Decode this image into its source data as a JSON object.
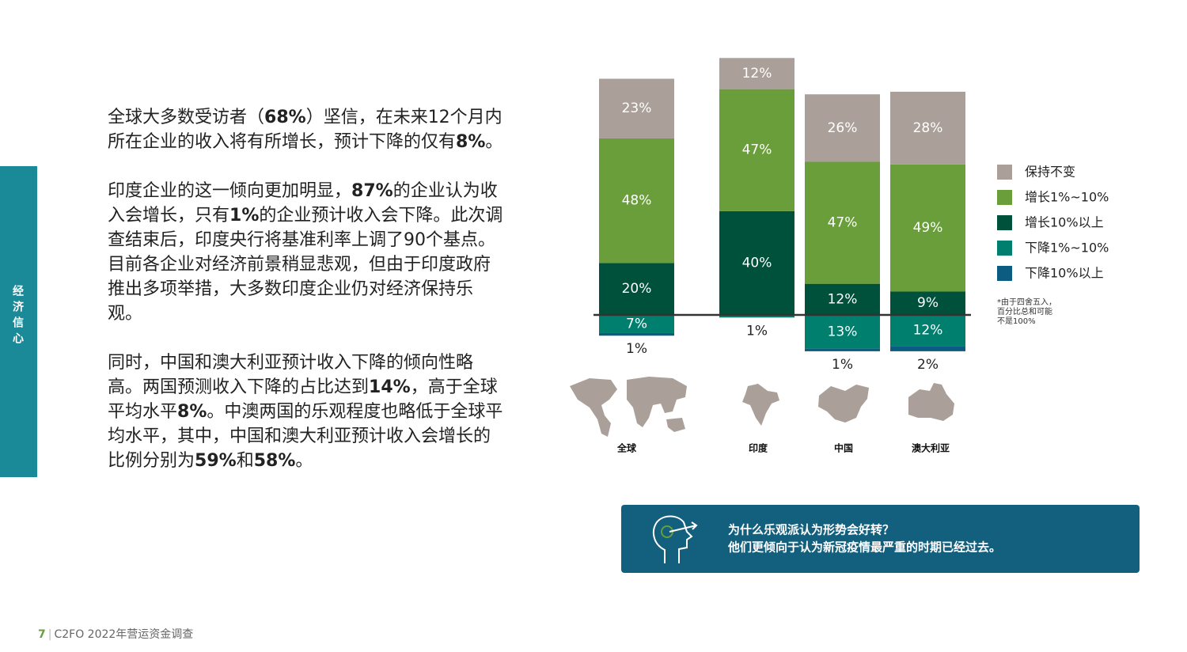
{
  "sidebar": {
    "label": "经济信心"
  },
  "paragraphs": [
    {
      "runs": [
        {
          "text": "全球大多数受访者（",
          "bold": false
        },
        {
          "text": "68%",
          "bold": true
        },
        {
          "text": "）坚信，在未来12个月内所在企业的收入将有所增长，预计下降的仅有",
          "bold": false
        },
        {
          "text": "8%",
          "bold": true
        },
        {
          "text": "。",
          "bold": false
        }
      ]
    },
    {
      "runs": [
        {
          "text": "印度企业的这一倾向更加明显，",
          "bold": false
        },
        {
          "text": "87%",
          "bold": true
        },
        {
          "text": "的企业认为收入会增长，只有",
          "bold": false
        },
        {
          "text": "1%",
          "bold": true
        },
        {
          "text": "的企业预计收入会下降。此次调查结束后，印度央行将基准利率上调了90个基点。目前各企业对经济前景稍显悲观，但由于印度政府推出多项举措，大多数印度企业仍对经济保持乐观。",
          "bold": false
        }
      ]
    },
    {
      "runs": [
        {
          "text": "同时，中国和澳大利亚预计收入下降的倾向性略高。两国预测收入下降的占比达到",
          "bold": false
        },
        {
          "text": "14%",
          "bold": true
        },
        {
          "text": "，高于全球平均水平",
          "bold": false
        },
        {
          "text": "8%",
          "bold": true
        },
        {
          "text": "。中澳两国的乐观程度也略低于全球平均水平，其中，中国和澳大利亚预计收入会增长的比例分别为",
          "bold": false
        },
        {
          "text": "59%",
          "bold": true
        },
        {
          "text": "和",
          "bold": false
        },
        {
          "text": "58%",
          "bold": true
        },
        {
          "text": "。",
          "bold": false
        }
      ]
    }
  ],
  "chart_data": {
    "type": "bar",
    "categories": [
      "全球",
      "印度",
      "中国",
      "澳大利亚"
    ],
    "series": [
      {
        "name": "保持不变",
        "color": "#aaa099",
        "stack": "up",
        "values": [
          23,
          12,
          26,
          28
        ],
        "value_labels": [
          "23%",
          "12%",
          "26%",
          "28%"
        ]
      },
      {
        "name": "增长1%~10%",
        "color": "#6a9e3b",
        "stack": "up",
        "values": [
          48,
          47,
          47,
          49
        ],
        "value_labels": [
          "48%",
          "47%",
          "47%",
          "49%"
        ]
      },
      {
        "name": "增长10%以上",
        "color": "#00513b",
        "stack": "up",
        "values": [
          20,
          40,
          12,
          9
        ],
        "value_labels": [
          "20%",
          "40%",
          "12%",
          "9%"
        ]
      },
      {
        "name": "下降1%~10%",
        "color": "#007f6e",
        "stack": "down",
        "values": [
          7,
          1,
          13,
          12
        ],
        "value_labels": [
          "7%",
          "1%",
          "13%",
          "12%"
        ]
      },
      {
        "name": "下降10%以上",
        "color": "#0b5c80",
        "stack": "down",
        "values": [
          1,
          null,
          1,
          2
        ],
        "value_labels": [
          "1%",
          null,
          "1%",
          "2%"
        ]
      }
    ],
    "footnote": [
      "*由于四舍五入，",
      "百分比总和可能",
      "不是100%"
    ]
  },
  "callout": {
    "lines": [
      "为什么乐观派认为形势会好转？",
      "他们更倾向于认为新冠疫情最严重的时期已经过去。"
    ]
  },
  "footer": {
    "page": "7",
    "title": "C2FO 2022年营运资金调查"
  }
}
